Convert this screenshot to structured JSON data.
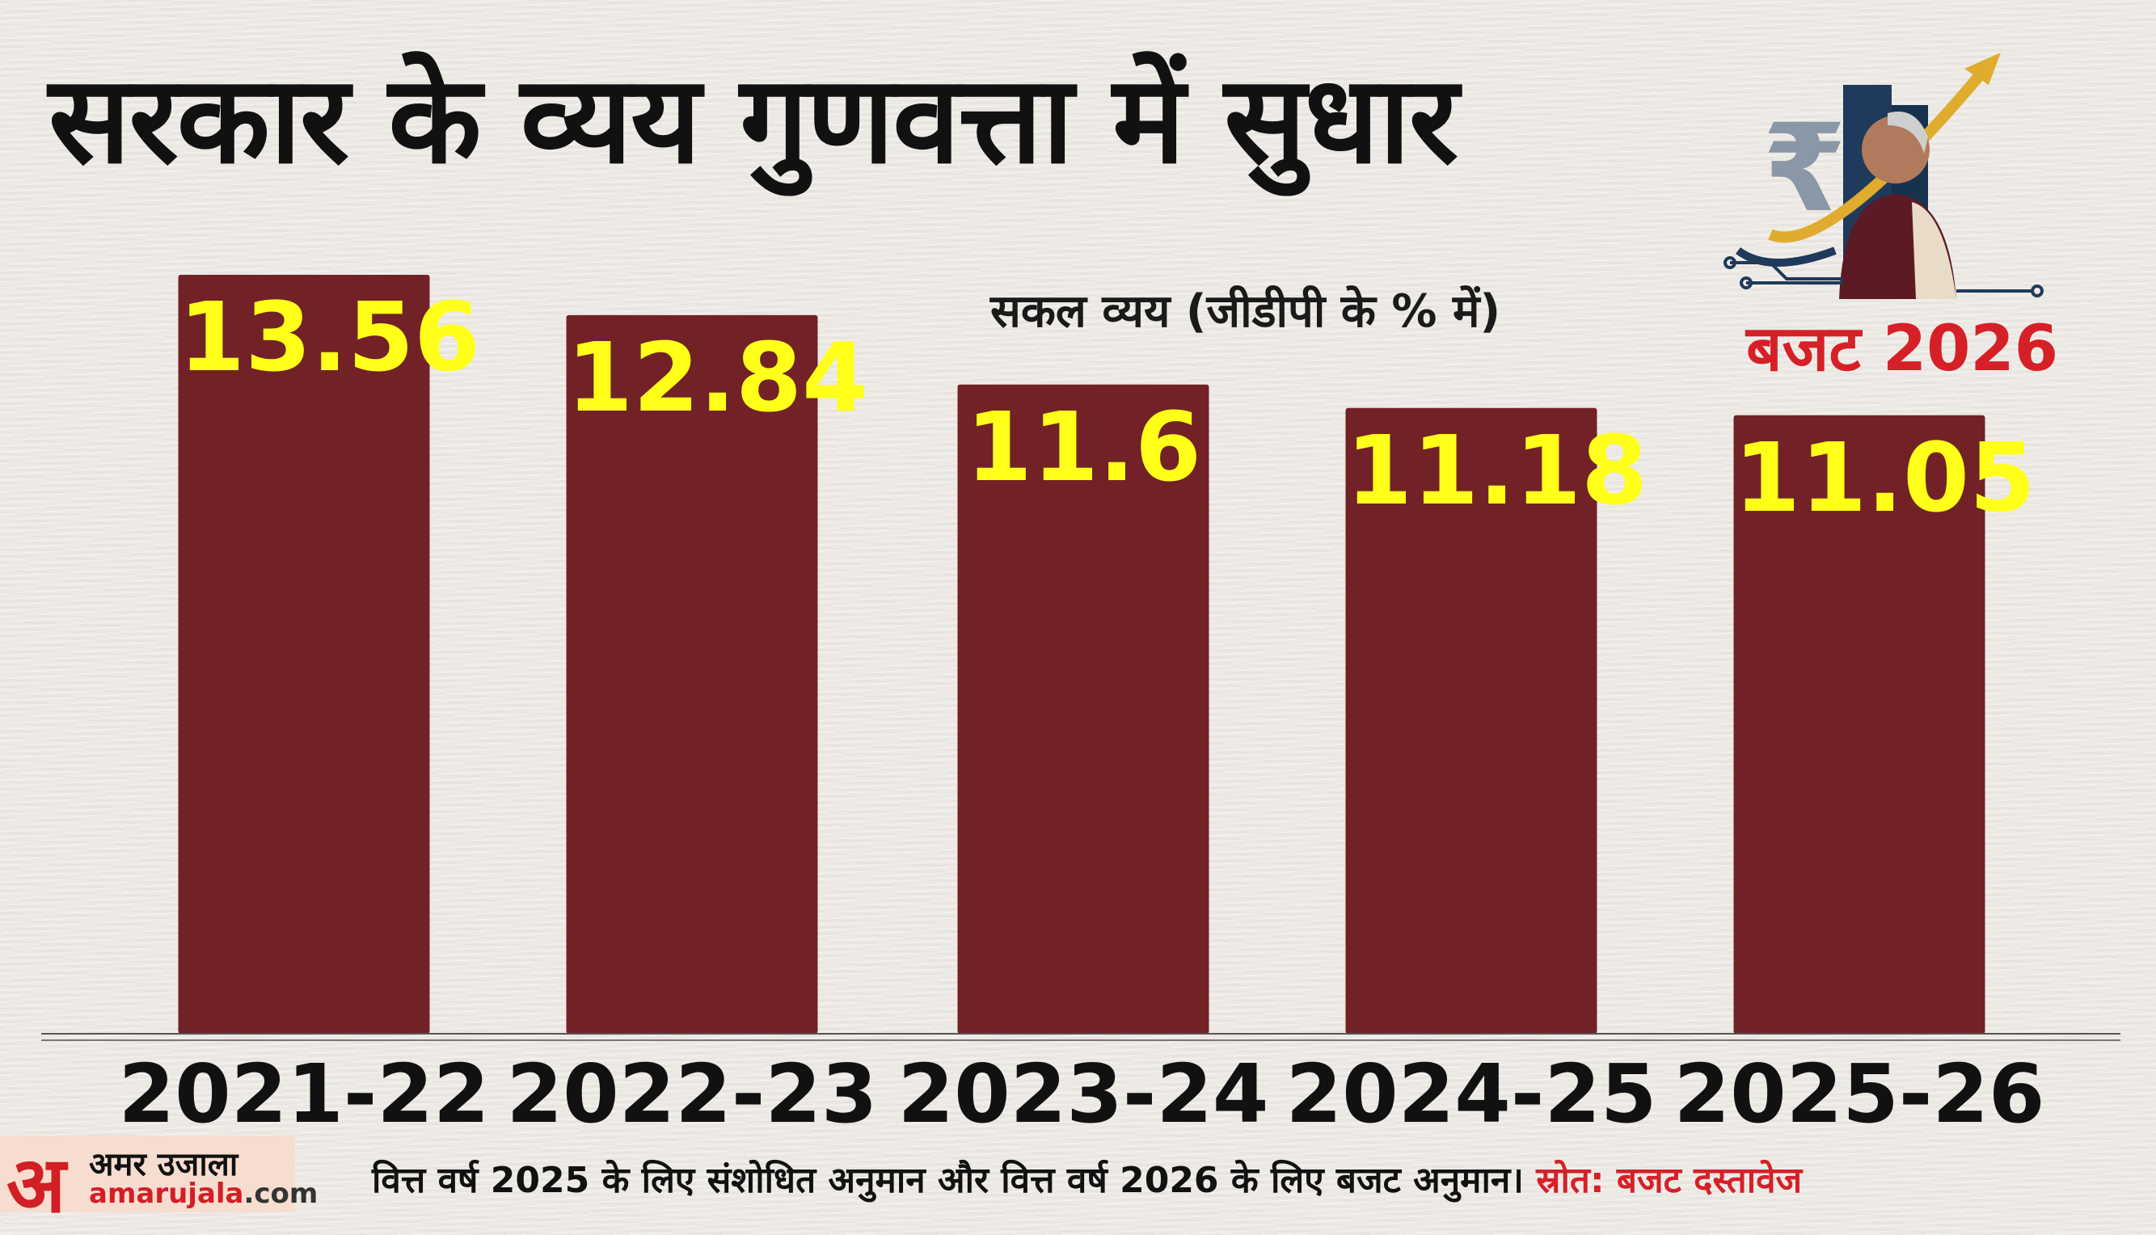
{
  "title": "सरकार के व्यय गुणवत्ता में सुधार",
  "brand": {
    "badge": "बजट 2026",
    "logo_hindi": "अमर उजाला",
    "logo_letter": "अ",
    "logo_domain_main": "amarujala",
    "logo_domain_tld": ".com"
  },
  "footnote": {
    "text": "वित्त वर्ष 2025 के लिए संशोधित अनुमान और वित्त वर्ष 2026 के लिए बजट अनुमान।",
    "source": "स्रोत: बजट दस्तावेज"
  },
  "chart_data": {
    "type": "bar",
    "title": "सकल व्यय (जीडीपी के % में)",
    "categories": [
      "2021-22",
      "2022-23",
      "2023-24",
      "2024-25",
      "2025-26"
    ],
    "values": [
      13.56,
      12.84,
      11.6,
      11.18,
      11.05
    ],
    "value_labels": [
      "13.56",
      "12.84",
      "11.6",
      "11.18",
      "11.05"
    ],
    "ylim": [
      0,
      13.56
    ],
    "grid": false,
    "colors": {
      "bar": "#722226",
      "value_label": "#ffff1a"
    }
  }
}
